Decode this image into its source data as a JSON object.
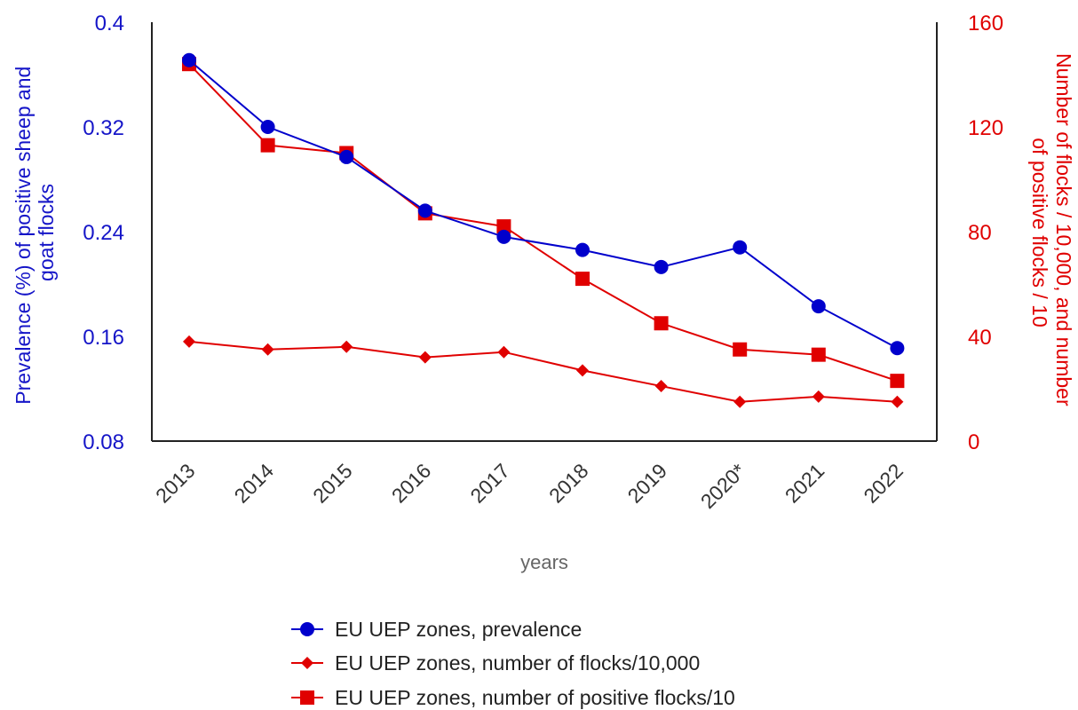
{
  "chart_data": {
    "type": "line",
    "categories": [
      "2013",
      "2014",
      "2015",
      "2016",
      "2017",
      "2018",
      "2019",
      "2020*",
      "2021",
      "2022"
    ],
    "xlabel": "years",
    "ylabel_left": "Prevalence (%) of positive sheep and goat flocks",
    "ylabel_right": "Number of flocks / 10,000, and number of positive flocks / 10",
    "ylim_left": [
      0.08,
      0.4
    ],
    "yticks_left": [
      "0.08",
      "0.16",
      "0.24",
      "0.32",
      "0.4"
    ],
    "ylim_right": [
      0,
      160
    ],
    "yticks_right": [
      "0",
      "40",
      "80",
      "120",
      "160"
    ],
    "legend_position": "bottom",
    "grid": false,
    "series": [
      {
        "name": "EU UEP zones, prevalence",
        "axis": "left",
        "color": "#0000CC",
        "marker": "circle",
        "values": [
          0.371,
          0.32,
          0.297,
          0.256,
          0.236,
          0.226,
          0.213,
          0.228,
          0.183,
          0.151
        ]
      },
      {
        "name": "EU UEP zones, number of flocks/10,000",
        "axis": "right",
        "color": "#E00000",
        "marker": "diamond",
        "values": [
          38,
          35,
          36,
          32,
          34,
          27,
          21,
          15,
          17,
          15
        ]
      },
      {
        "name": "EU UEP zones, number of positive flocks/10",
        "axis": "right",
        "color": "#E00000",
        "marker": "square",
        "values": [
          144,
          113,
          110,
          87,
          82,
          62,
          45,
          35,
          33,
          23
        ]
      }
    ]
  }
}
